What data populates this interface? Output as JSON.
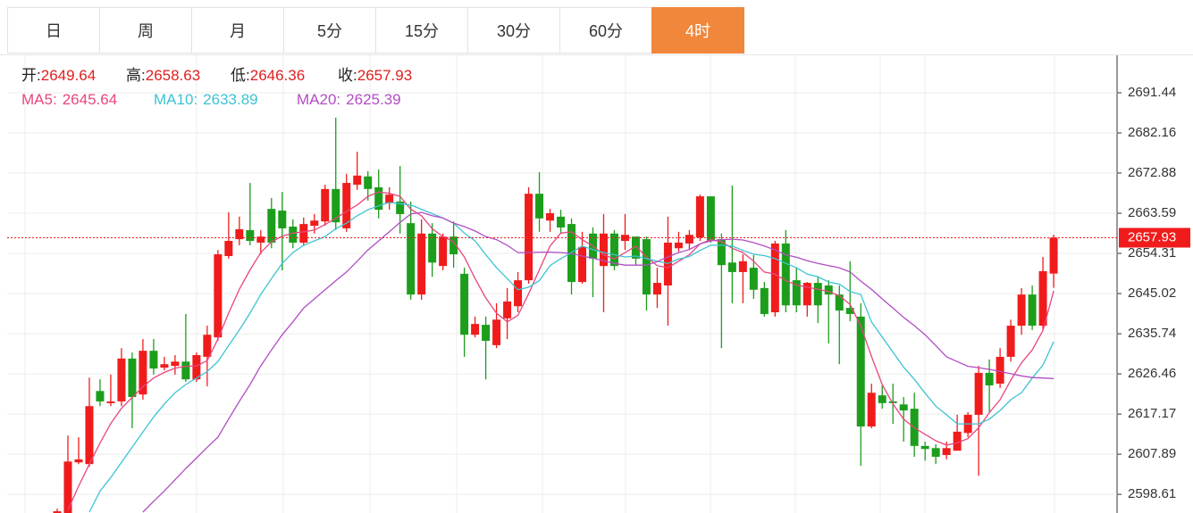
{
  "tabs": {
    "items": [
      "日",
      "周",
      "月",
      "5分",
      "15分",
      "30分",
      "60分",
      "4时"
    ],
    "active": 7
  },
  "chart_data": {
    "type": "candlestick",
    "ohlc_labels": [
      "开:",
      "高:",
      "低:",
      "收:"
    ],
    "legend_separator": ":",
    "up_color": "#f01c1c",
    "down_color": "#1c9e1c",
    "candles": [
      [
        2594.3,
        2595.3,
        2594.3,
        2594.7
      ],
      [
        2594.3,
        2612.2,
        2594.3,
        2606.2
      ],
      [
        2606.0,
        2611.8,
        2605.6,
        2606.7
      ],
      [
        2605.6,
        2625.6,
        2605.0,
        2619.0
      ],
      [
        2622.5,
        2625.2,
        2619.0,
        2620.1
      ],
      [
        2619.7,
        2626.3,
        2619.0,
        2620.1
      ],
      [
        2620.1,
        2632.4,
        2619.0,
        2630.0
      ],
      [
        2630.0,
        2631.4,
        2613.9,
        2621.1
      ],
      [
        2621.7,
        2634.5,
        2620.5,
        2631.8
      ],
      [
        2631.8,
        2634.5,
        2626.3,
        2627.7
      ],
      [
        2627.9,
        2630.4,
        2627.3,
        2628.7
      ],
      [
        2628.3,
        2630.8,
        2626.3,
        2629.3
      ],
      [
        2629.3,
        2640.3,
        2624.6,
        2625.2
      ],
      [
        2625.2,
        2631.4,
        2624.6,
        2630.8
      ],
      [
        2630.4,
        2637.6,
        2623.6,
        2635.5
      ],
      [
        2634.9,
        2655.1,
        2634.1,
        2654.1
      ],
      [
        2653.7,
        2663.8,
        2653.1,
        2657.2
      ],
      [
        2657.6,
        2662.8,
        2656.2,
        2659.9
      ],
      [
        2659.7,
        2670.6,
        2656.2,
        2657.2
      ],
      [
        2656.8,
        2659.7,
        2654.1,
        2658.2
      ],
      [
        2664.6,
        2667.1,
        2655.5,
        2656.8
      ],
      [
        2664.2,
        2668.5,
        2650.4,
        2660.1
      ],
      [
        2660.5,
        2662.2,
        2655.5,
        2656.8
      ],
      [
        2656.8,
        2662.6,
        2656.0,
        2661.1
      ],
      [
        2660.7,
        2663.4,
        2658.9,
        2661.9
      ],
      [
        2661.7,
        2670.2,
        2660.7,
        2669.2
      ],
      [
        2669.2,
        2685.7,
        2659.7,
        2661.5
      ],
      [
        2660.1,
        2672.7,
        2659.3,
        2670.6
      ],
      [
        2670.2,
        2677.8,
        2669.0,
        2672.3
      ],
      [
        2672.1,
        2673.3,
        2666.5,
        2669.2
      ],
      [
        2669.6,
        2673.7,
        2662.4,
        2664.4
      ],
      [
        2665.9,
        2669.6,
        2664.4,
        2667.9
      ],
      [
        2666.3,
        2674.5,
        2658.9,
        2663.4
      ],
      [
        2661.3,
        2666.3,
        2643.6,
        2644.8
      ],
      [
        2644.8,
        2662.2,
        2643.6,
        2658.9
      ],
      [
        2658.9,
        2661.3,
        2648.9,
        2652.2
      ],
      [
        2651.4,
        2658.9,
        2650.4,
        2658.2
      ],
      [
        2658.2,
        2661.7,
        2651.0,
        2654.1
      ],
      [
        2649.6,
        2651.0,
        2630.4,
        2635.5
      ],
      [
        2635.5,
        2639.7,
        2634.9,
        2638.0
      ],
      [
        2637.8,
        2639.7,
        2625.2,
        2634.1
      ],
      [
        2633.1,
        2642.8,
        2632.4,
        2639.0
      ],
      [
        2639.3,
        2646.3,
        2634.5,
        2643.2
      ],
      [
        2642.1,
        2650.0,
        2640.7,
        2648.1
      ],
      [
        2648.1,
        2669.6,
        2647.3,
        2668.1
      ],
      [
        2668.1,
        2673.1,
        2659.3,
        2662.4
      ],
      [
        2661.9,
        2664.6,
        2659.3,
        2663.6
      ],
      [
        2662.8,
        2664.4,
        2658.9,
        2660.3
      ],
      [
        2661.1,
        2662.4,
        2644.8,
        2647.7
      ],
      [
        2647.7,
        2659.3,
        2647.3,
        2655.8
      ],
      [
        2658.9,
        2660.3,
        2644.2,
        2653.1
      ],
      [
        2651.4,
        2663.4,
        2640.7,
        2658.9
      ],
      [
        2658.9,
        2659.7,
        2650.4,
        2651.4
      ],
      [
        2657.2,
        2663.4,
        2655.1,
        2658.6
      ],
      [
        2658.2,
        2658.2,
        2651.6,
        2653.1
      ],
      [
        2657.6,
        2658.2,
        2641.1,
        2644.8
      ],
      [
        2644.8,
        2651.0,
        2641.7,
        2647.5
      ],
      [
        2646.9,
        2662.8,
        2637.6,
        2656.8
      ],
      [
        2655.5,
        2659.3,
        2654.7,
        2656.8
      ],
      [
        2656.6,
        2659.7,
        2655.1,
        2658.6
      ],
      [
        2658.0,
        2667.9,
        2657.2,
        2667.5
      ],
      [
        2667.5,
        2667.5,
        2656.8,
        2657.2
      ],
      [
        2657.6,
        2658.9,
        2632.4,
        2651.6
      ],
      [
        2652.2,
        2670.0,
        2642.8,
        2650.0
      ],
      [
        2650.0,
        2654.1,
        2642.8,
        2652.5
      ],
      [
        2651.0,
        2653.9,
        2643.8,
        2645.9
      ],
      [
        2646.3,
        2647.7,
        2639.7,
        2640.3
      ],
      [
        2640.7,
        2657.2,
        2639.7,
        2656.6
      ],
      [
        2656.6,
        2659.7,
        2640.7,
        2642.3
      ],
      [
        2648.1,
        2651.0,
        2640.7,
        2642.3
      ],
      [
        2642.3,
        2647.7,
        2639.7,
        2647.5
      ],
      [
        2647.5,
        2648.9,
        2638.2,
        2642.3
      ],
      [
        2646.9,
        2648.1,
        2633.5,
        2644.8
      ],
      [
        2644.8,
        2646.9,
        2628.7,
        2641.1
      ],
      [
        2641.7,
        2652.5,
        2638.6,
        2640.3
      ],
      [
        2639.7,
        2642.8,
        2605.2,
        2614.3
      ],
      [
        2614.3,
        2624.2,
        2613.9,
        2622.1
      ],
      [
        2621.5,
        2623.8,
        2618.4,
        2619.7
      ],
      [
        2620.1,
        2624.2,
        2614.9,
        2619.7
      ],
      [
        2619.4,
        2621.1,
        2610.8,
        2618.0
      ],
      [
        2618.4,
        2622.1,
        2607.3,
        2609.8
      ],
      [
        2609.8,
        2610.8,
        2606.4,
        2609.1
      ],
      [
        2609.3,
        2610.2,
        2605.6,
        2607.3
      ],
      [
        2607.7,
        2610.8,
        2606.7,
        2609.3
      ],
      [
        2608.7,
        2617.0,
        2608.7,
        2613.1
      ],
      [
        2612.8,
        2617.6,
        2611.8,
        2617.0
      ],
      [
        2617.0,
        2628.3,
        2602.9,
        2626.7
      ],
      [
        2626.7,
        2629.8,
        2617.6,
        2623.8
      ],
      [
        2624.2,
        2632.4,
        2623.2,
        2630.4
      ],
      [
        2630.4,
        2639.0,
        2629.3,
        2637.6
      ],
      [
        2637.6,
        2646.3,
        2635.5,
        2644.8
      ],
      [
        2644.8,
        2646.9,
        2636.6,
        2637.6
      ],
      [
        2637.6,
        2653.5,
        2636.6,
        2650.2
      ],
      [
        2649.64,
        2658.63,
        2646.36,
        2657.93
      ]
    ],
    "series": [
      {
        "name": "MA5",
        "color": "#e8457f",
        "values": [
          null,
          2595.0,
          2600.5,
          2605.6,
          2610.5,
          2615.0,
          2618.5,
          2621.0,
          2623.5,
          2625.5,
          2626.8,
          2627.8,
          2628.2,
          2628.3,
          2629.5,
          2634.5,
          2640.5,
          2646.0,
          2650.5,
          2654.5,
          2657.0,
          2658.3,
          2659.0,
          2659.3,
          2659.7,
          2661.0,
          2662.4,
          2664.0,
          2665.5,
          2667.5,
          2668.5,
          2668.2,
          2667.5,
          2664.5,
          2663.0,
          2660.0,
          2658.2,
          2657.0,
          2653.5,
          2648.5,
          2644.0,
          2640.5,
          2638.5,
          2640.0,
          2645.0,
          2650.5,
          2656.0,
          2659.0,
          2659.3,
          2657.5,
          2656.0,
          2654.0,
          2653.0,
          2654.5,
          2656.0,
          2653.5,
          2651.5,
          2651.0,
          2652.5,
          2654.0,
          2656.5,
          2657.5,
          2657.0,
          2655.5,
          2654.5,
          2652.5,
          2650.0,
          2649.5,
          2648.0,
          2647.0,
          2646.5,
          2646.0,
          2645.5,
          2644.5,
          2642.5,
          2637.5,
          2630.5,
          2624.0,
          2619.5,
          2616.0,
          2614.0,
          2612.5,
          2611.0,
          2610.0,
          2610.5,
          2611.5,
          2614.0,
          2617.5,
          2620.5,
          2625.0,
          2629.0,
          2632.0,
          2636.5,
          2645.64
        ]
      },
      {
        "name": "MA10",
        "color": "#3dc3d3",
        "values": [
          null,
          null,
          null,
          2594.5,
          2599.4,
          2602.5,
          2606.0,
          2609.5,
          2613.0,
          2616.5,
          2619.5,
          2622.1,
          2624.0,
          2625.5,
          2627.0,
          2629.3,
          2633.0,
          2636.6,
          2640.5,
          2644.8,
          2648.5,
          2652.0,
          2654.5,
          2656.2,
          2657.2,
          2658.2,
          2660.0,
          2661.3,
          2663.0,
          2664.4,
          2665.3,
          2666.1,
          2665.8,
          2665.5,
          2664.5,
          2663.5,
          2662.5,
          2661.3,
          2659.0,
          2657.2,
          2654.0,
          2651.0,
          2648.5,
          2645.9,
          2646.5,
          2648.0,
          2651.5,
          2653.1,
          2654.5,
          2656.0,
          2655.2,
          2654.5,
          2654.0,
          2653.5,
          2653.7,
          2653.1,
          2652.5,
          2652.0,
          2653.0,
          2653.6,
          2655.0,
          2656.2,
          2656.2,
          2656.0,
          2655.0,
          2654.1,
          2653.8,
          2653.1,
          2652.0,
          2651.0,
          2649.5,
          2648.9,
          2647.7,
          2647.2,
          2645.5,
          2644.8,
          2638.5,
          2635.0,
          2631.5,
          2628.0,
          2625.2,
          2622.0,
          2619.0,
          2617.0,
          2614.9,
          2614.9,
          2614.9,
          2616.0,
          2618.0,
          2620.5,
          2622.1,
          2625.5,
          2628.5,
          2633.89
        ]
      },
      {
        "name": "MA20",
        "color": "#b24dc4",
        "values": [
          null,
          null,
          null,
          null,
          null,
          null,
          null,
          null,
          2594.5,
          2597.0,
          2599.4,
          2602.0,
          2604.6,
          2607.0,
          2609.5,
          2611.8,
          2616.0,
          2620.1,
          2624.0,
          2628.3,
          2632.0,
          2635.5,
          2638.5,
          2641.7,
          2643.8,
          2645.9,
          2648.0,
          2650.0,
          2652.5,
          2655.1,
          2657.2,
          2659.3,
          2661.5,
          2663.4,
          2663.8,
          2663.0,
          2662.5,
          2661.3,
          2660.5,
          2659.5,
          2658.2,
          2657.5,
          2656.2,
          2654.5,
          2654.5,
          2654.6,
          2654.6,
          2654.5,
          2654.3,
          2653.7,
          2653.2,
          2652.6,
          2652.0,
          2651.6,
          2651.6,
          2651.6,
          2652.4,
          2653.5,
          2654.5,
          2655.2,
          2656.5,
          2657.2,
          2657.5,
          2657.6,
          2657.4,
          2656.8,
          2656.0,
          2655.1,
          2654.0,
          2653.4,
          2652.6,
          2652.0,
          2651.5,
          2651.0,
          2650.0,
          2647.9,
          2646.0,
          2643.8,
          2641.7,
          2639.5,
          2637.6,
          2635.5,
          2633.0,
          2630.4,
          2629.3,
          2628.2,
          2627.9,
          2627.5,
          2627.0,
          2626.5,
          2626.0,
          2625.6,
          2625.5,
          2625.39
        ]
      }
    ],
    "ylim": [
      2594.3,
      2700.1
    ],
    "yticks": [
      2691.44,
      2682.16,
      2672.88,
      2663.59,
      2654.31,
      2645.02,
      2635.74,
      2626.46,
      2617.17,
      2607.89,
      2598.61
    ],
    "grid": true,
    "last_price_line": true
  }
}
